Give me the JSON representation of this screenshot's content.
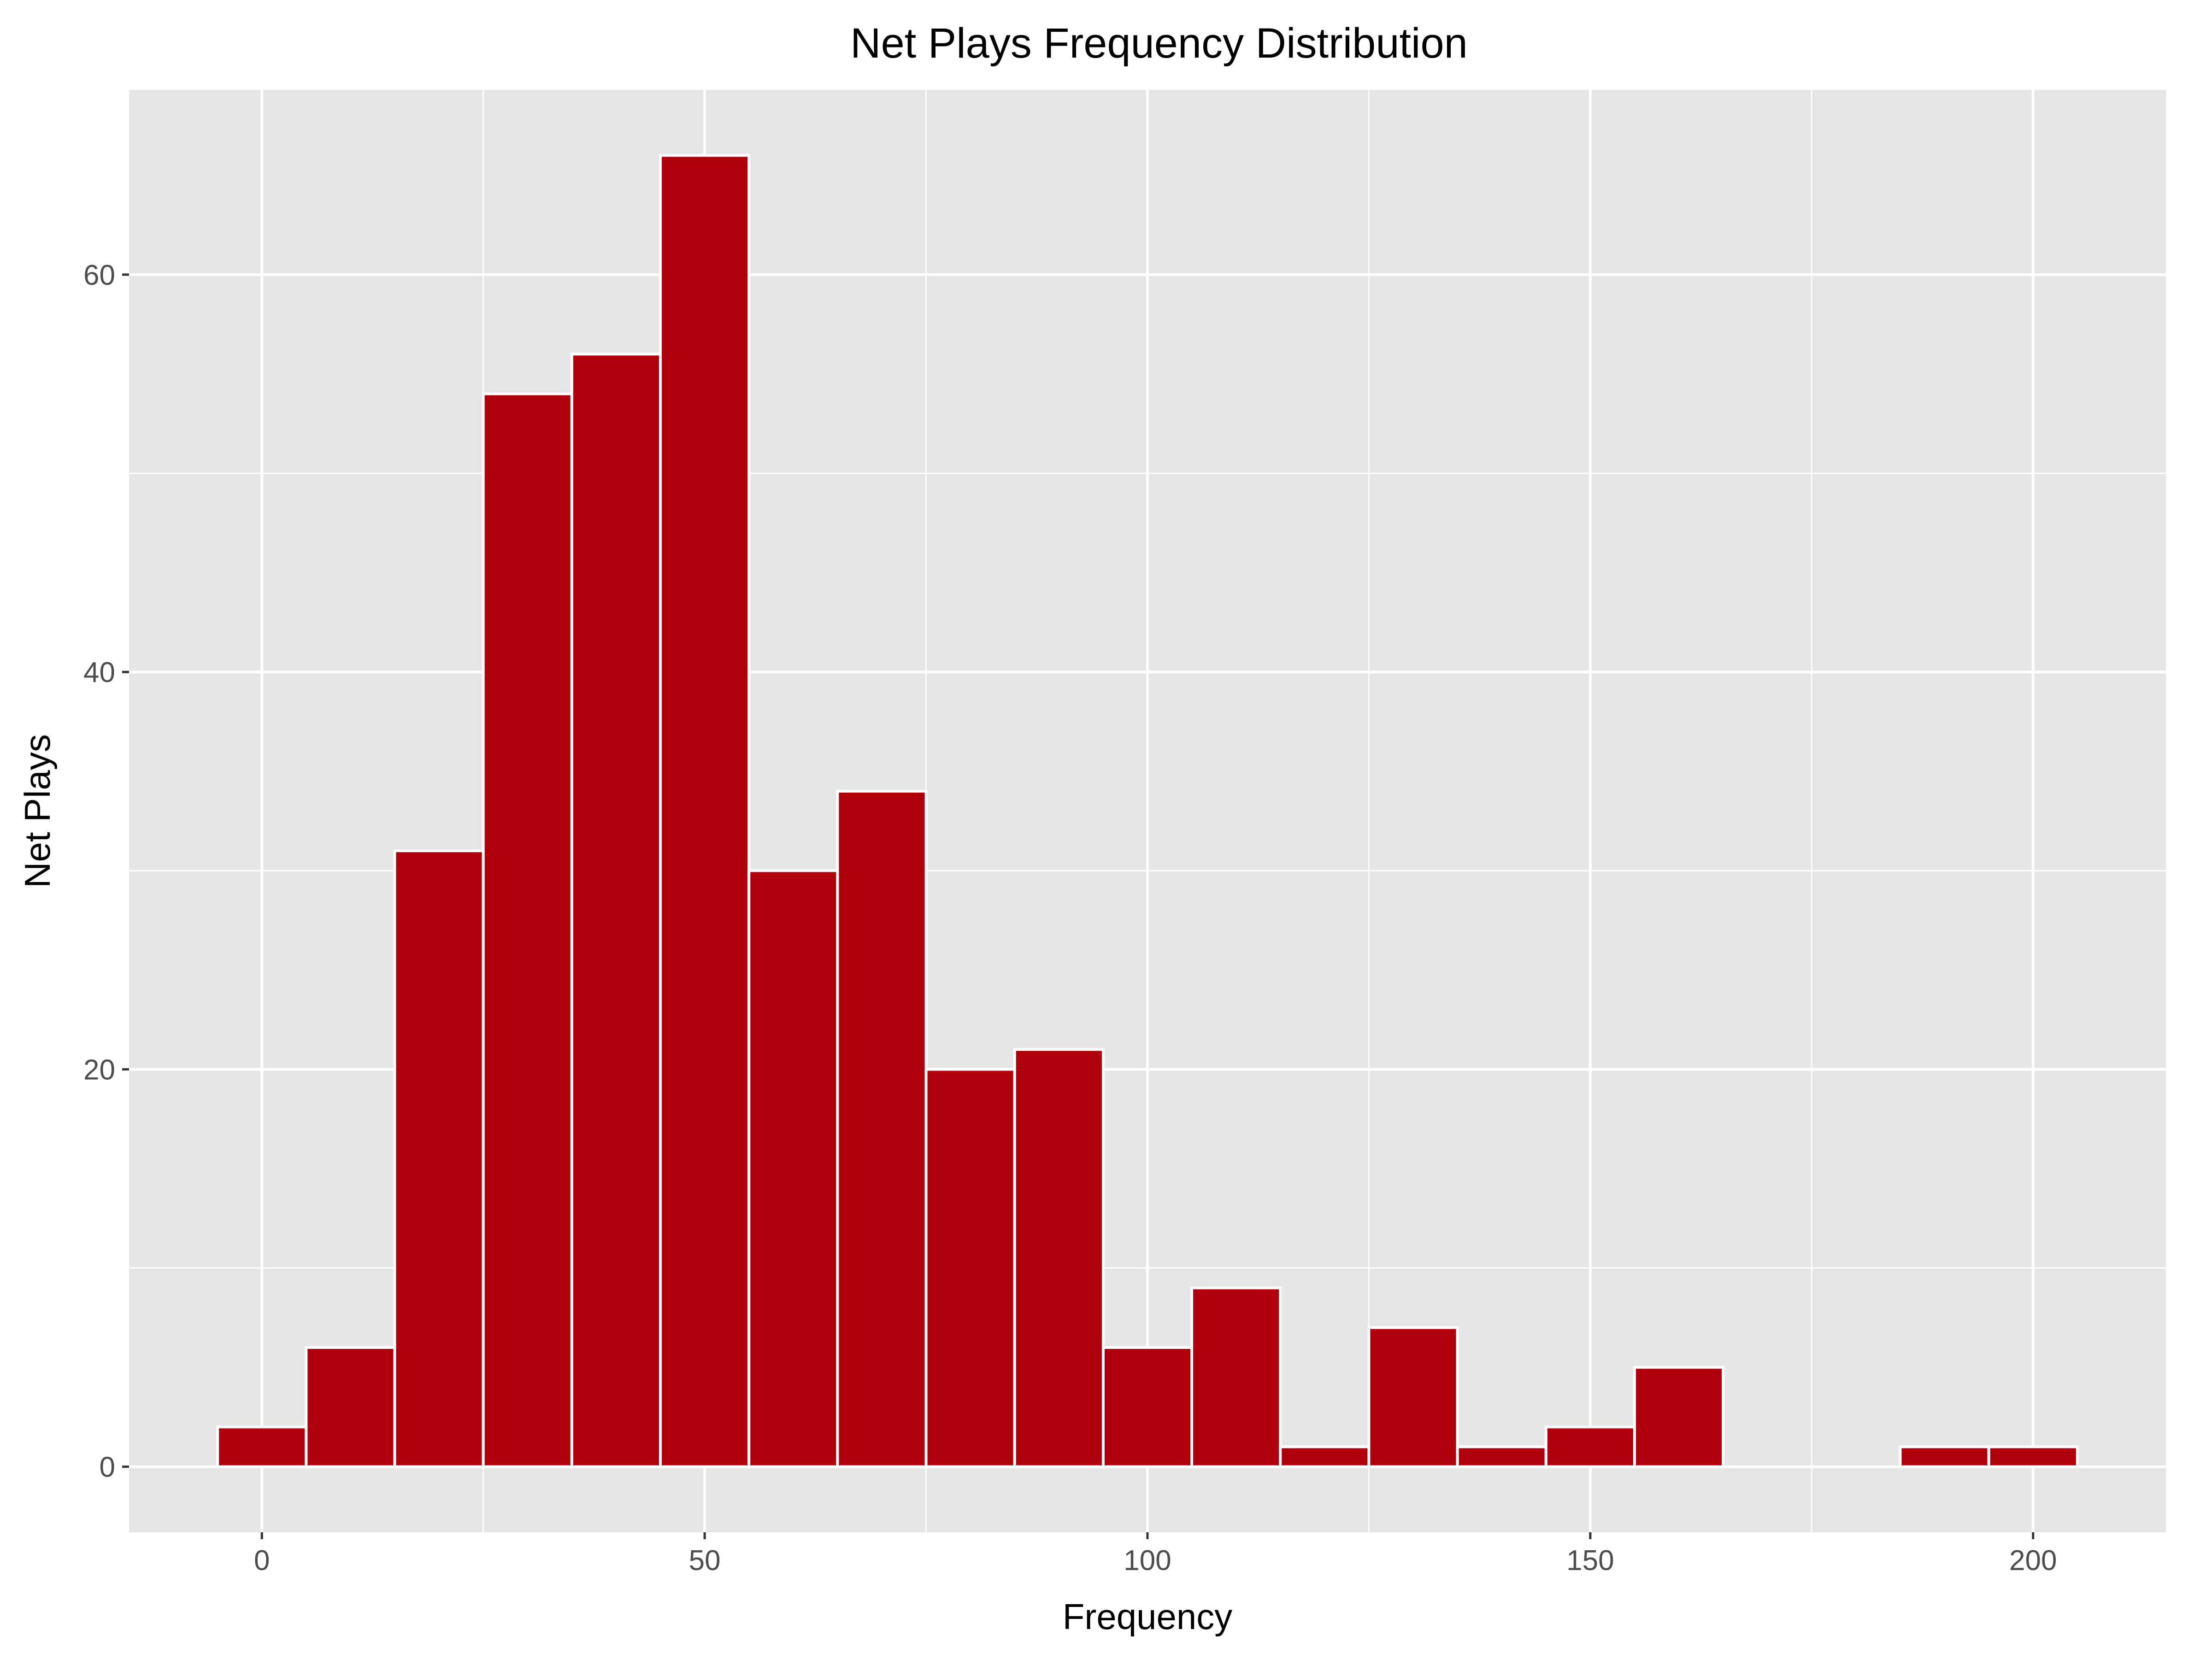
{
  "chart_data": {
    "type": "bar",
    "title": "Net Plays Frequency Distribution",
    "xlabel": "Frequency",
    "ylabel": "Net Plays",
    "bin_width": 10,
    "bins": [
      {
        "center": 0,
        "count": 2
      },
      {
        "center": 10,
        "count": 6
      },
      {
        "center": 20,
        "count": 31
      },
      {
        "center": 30,
        "count": 54
      },
      {
        "center": 40,
        "count": 56
      },
      {
        "center": 50,
        "count": 66
      },
      {
        "center": 60,
        "count": 30
      },
      {
        "center": 70,
        "count": 34
      },
      {
        "center": 80,
        "count": 20
      },
      {
        "center": 90,
        "count": 21
      },
      {
        "center": 100,
        "count": 6
      },
      {
        "center": 110,
        "count": 9
      },
      {
        "center": 120,
        "count": 1
      },
      {
        "center": 130,
        "count": 7
      },
      {
        "center": 140,
        "count": 1
      },
      {
        "center": 150,
        "count": 2
      },
      {
        "center": 160,
        "count": 5
      },
      {
        "center": 170,
        "count": 0
      },
      {
        "center": 180,
        "count": 0
      },
      {
        "center": 190,
        "count": 1
      },
      {
        "center": 200,
        "count": 1
      }
    ],
    "xlim": [
      -15,
      215
    ],
    "ylim": [
      -3.3,
      69.3
    ],
    "x_ticks": [
      0,
      50,
      100,
      150,
      200
    ],
    "y_ticks": [
      0,
      20,
      40,
      60
    ],
    "x_tick_labels": [
      "0",
      "50",
      "100",
      "150",
      "200"
    ],
    "y_tick_labels": [
      "0",
      "20",
      "40",
      "60"
    ],
    "bar_fill": "#b0000b",
    "bar_outline": "#ffffff",
    "panel_background": "#e5e5e5",
    "grid": true,
    "grid_color": "#ffffff",
    "legend": "none"
  }
}
